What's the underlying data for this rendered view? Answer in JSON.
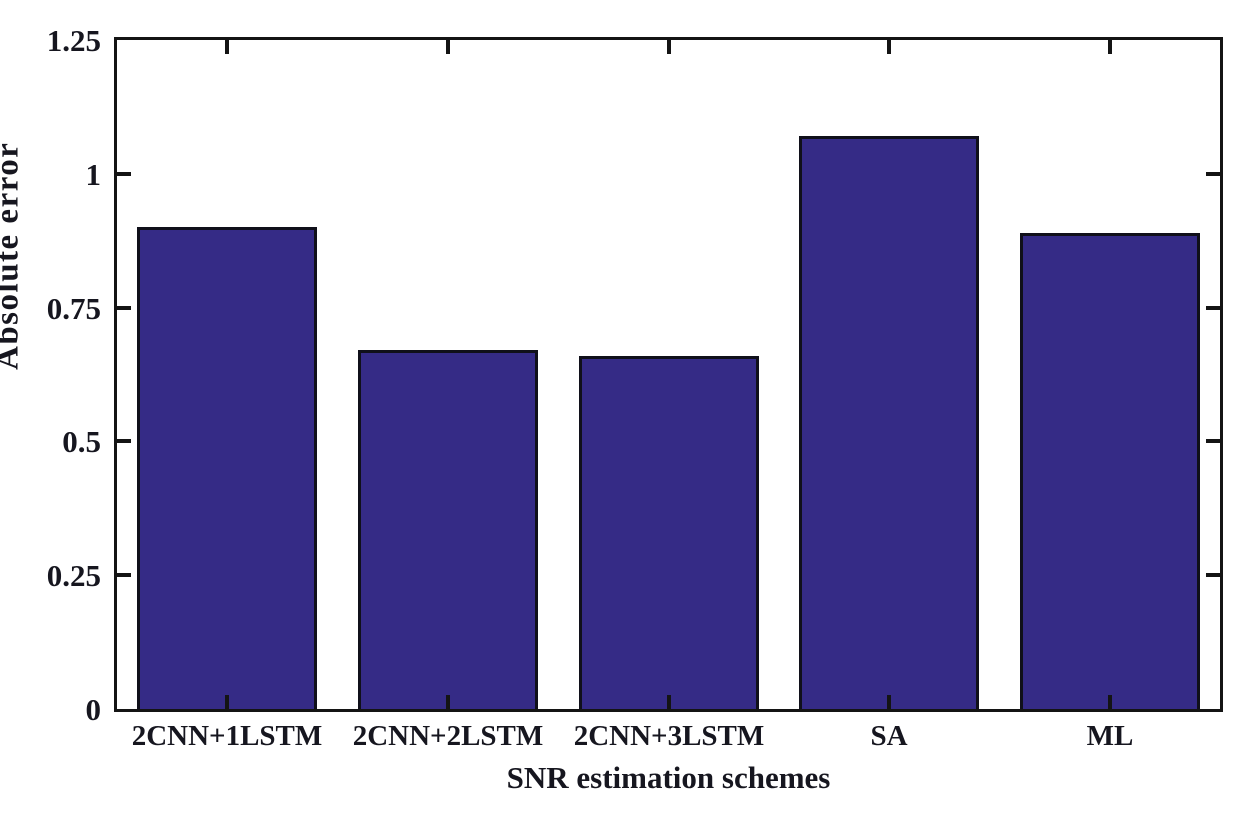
{
  "chart_data": {
    "type": "bar",
    "title": "",
    "categories": [
      "2CNN+1LSTM",
      "2CNN+2LSTM",
      "2CNN+3LSTM",
      "SA",
      "ML"
    ],
    "values": [
      0.9,
      0.67,
      0.66,
      1.07,
      0.89
    ],
    "xlabel": "SNR estimation schemes",
    "ylabel": "Absolute error",
    "ylim": [
      0,
      1.25
    ],
    "yticks": [
      0,
      0.25,
      0.5,
      0.75,
      1,
      1.25
    ],
    "ytick_labels": [
      "0",
      "0.25",
      "0.5",
      "0.75",
      "1",
      "1.25"
    ],
    "grid": false,
    "legend": null,
    "bar_color": "#352b86",
    "bar_border_color": "#10101a",
    "axis_color": "#141414",
    "text_color": "#16161f",
    "background_color": "#ffffff"
  }
}
